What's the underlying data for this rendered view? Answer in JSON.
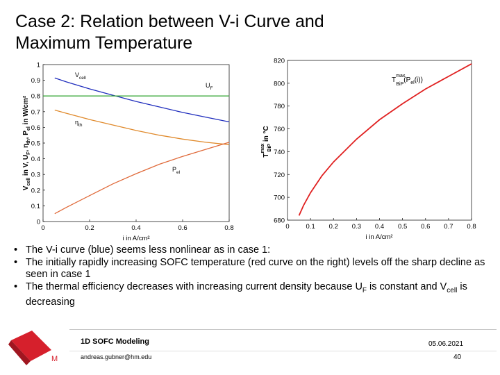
{
  "slide": {
    "title_line1": "Case 2: Relation between V-i Curve and",
    "title_line2": "Maximum Temperature"
  },
  "bullets": [
    {
      "text": "The V-i curve (blue) seems less nonlinear as in case 1:"
    },
    {
      "text": "The initially rapidly increasing SOFC temperature (red curve on the right) levels off the sharp decline as seen in case 1"
    },
    {
      "text_before": "The thermal efficiency decreases with increasing current density because U",
      "sub1": "F",
      "text_mid": " is constant and V",
      "sub2": "cell",
      "text_after": " is decreasing"
    }
  ],
  "footer": {
    "course": "1D SOFC Modeling",
    "email": "andreas.gubner@hm.edu",
    "date": "05.06.2021",
    "page": "40",
    "logo_letter": "M"
  },
  "chart_data": [
    {
      "type": "line",
      "xlabel": "i in A/cm²",
      "ylabel": "V_cell in V, U_F, η_th, P_el in W/cm²",
      "xlim": [
        0,
        0.8
      ],
      "ylim": [
        0,
        1
      ],
      "x_ticks": [
        "0",
        "0.2",
        "0.4",
        "0.6",
        "0.8"
      ],
      "y_ticks": [
        "0",
        "0.1",
        "0.2",
        "0.3",
        "0.4",
        "0.5",
        "0.6",
        "0.7",
        "0.8",
        "0.9",
        "1"
      ],
      "grid": false,
      "series": [
        {
          "name": "V_cell",
          "label_main": "V",
          "label_sub": "cell",
          "color": "#1f2dbd",
          "x": [
            0.05,
            0.1,
            0.2,
            0.3,
            0.4,
            0.5,
            0.6,
            0.7,
            0.8
          ],
          "y": [
            0.915,
            0.89,
            0.845,
            0.805,
            0.765,
            0.73,
            0.695,
            0.665,
            0.635
          ]
        },
        {
          "name": "U_F",
          "label_main": "U",
          "label_sub": "F",
          "color": "#3aa83a",
          "x": [
            0,
            0.8
          ],
          "y": [
            0.8,
            0.8
          ]
        },
        {
          "name": "η_th",
          "label_main": "η",
          "label_sub": "th",
          "color": "#e08a2c",
          "x": [
            0.05,
            0.1,
            0.2,
            0.3,
            0.4,
            0.5,
            0.6,
            0.7,
            0.8
          ],
          "y": [
            0.71,
            0.69,
            0.65,
            0.615,
            0.58,
            0.55,
            0.525,
            0.505,
            0.49
          ]
        },
        {
          "name": "P_el",
          "label_main": "P",
          "label_sub": "el",
          "color": "#e06a3a",
          "x": [
            0.05,
            0.1,
            0.2,
            0.3,
            0.4,
            0.5,
            0.6,
            0.7,
            0.8
          ],
          "y": [
            0.05,
            0.09,
            0.165,
            0.24,
            0.305,
            0.365,
            0.415,
            0.46,
            0.505
          ]
        }
      ]
    },
    {
      "type": "line",
      "xlabel": "i in A/cm²",
      "ylabel": "T_BiP^max in °C",
      "xlim": [
        0,
        0.8
      ],
      "ylim": [
        680,
        820
      ],
      "x_ticks": [
        "0",
        "0.1",
        "0.2",
        "0.3",
        "0.4",
        "0.5",
        "0.6",
        "0.7",
        "0.8"
      ],
      "y_ticks": [
        "680",
        "700",
        "720",
        "740",
        "760",
        "780",
        "800",
        "820"
      ],
      "grid": false,
      "legend_label": "T_BiP^max(P_el(i))",
      "series": [
        {
          "name": "T_BiP^max(P_el(i))",
          "color": "#e02020",
          "x": [
            0.05,
            0.07,
            0.1,
            0.15,
            0.2,
            0.3,
            0.4,
            0.5,
            0.6,
            0.7,
            0.8
          ],
          "y": [
            684,
            693,
            704,
            719,
            731,
            751,
            768,
            782,
            795,
            806,
            817
          ]
        }
      ]
    }
  ]
}
